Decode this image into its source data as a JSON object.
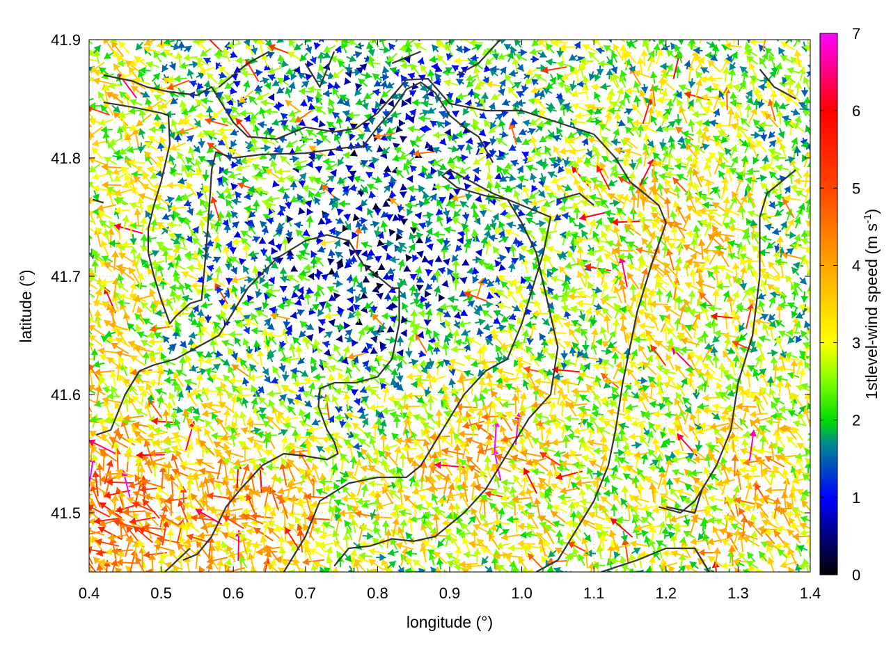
{
  "chart_data": {
    "type": "vector-field",
    "xlabel": "longitude (°)",
    "ylabel": "latitude (°)",
    "xlim": [
      0.4,
      1.4
    ],
    "ylim": [
      41.45,
      41.9
    ],
    "xticks": [
      0.4,
      0.5,
      0.6,
      0.7,
      0.8,
      0.9,
      1.0,
      1.1,
      1.2,
      1.3,
      1.4
    ],
    "xtick_labels": [
      "0.4",
      "0.5",
      "0.6",
      "0.7",
      "0.8",
      "0.9",
      "1.0",
      "1.1",
      "1.2",
      "1.3",
      "1.4"
    ],
    "yticks": [
      41.5,
      41.6,
      41.7,
      41.8,
      41.9
    ],
    "ytick_labels": [
      "41.5",
      "41.6",
      "41.7",
      "41.8",
      "41.9"
    ],
    "grid": true,
    "colorbar": {
      "label_text": "1stlevel-wind speed (m s",
      "label_sup": "-1",
      "label_tail": ")",
      "range": [
        0,
        7
      ],
      "ticks": [
        0,
        1,
        2,
        3,
        4,
        5,
        6,
        7
      ],
      "tick_labels": [
        "0",
        "1",
        "2",
        "3",
        "4",
        "5",
        "6",
        "7"
      ],
      "stops": [
        {
          "v": 0,
          "color": "#000000"
        },
        {
          "v": 1,
          "color": "#0000ff"
        },
        {
          "v": 1.7,
          "color": "#008b8b"
        },
        {
          "v": 2,
          "color": "#00dd00"
        },
        {
          "v": 2.5,
          "color": "#7fff00"
        },
        {
          "v": 3,
          "color": "#ffff00"
        },
        {
          "v": 4,
          "color": "#ffa500"
        },
        {
          "v": 5,
          "color": "#ff4500"
        },
        {
          "v": 6,
          "color": "#ff0000"
        },
        {
          "v": 7,
          "color": "#ff00ff"
        }
      ]
    },
    "contour_color": "#333333",
    "contours": [
      [
        [
          0.42,
          41.87
        ],
        [
          0.46,
          41.865
        ],
        [
          0.48,
          41.86
        ],
        [
          0.51,
          41.856
        ],
        [
          0.55,
          41.853
        ],
        [
          0.57,
          41.86
        ],
        [
          0.6,
          41.83
        ],
        [
          0.62,
          41.818
        ],
        [
          0.66,
          41.816
        ],
        [
          0.7,
          41.826
        ],
        [
          0.74,
          41.822
        ],
        [
          0.77,
          41.825
        ],
        [
          0.8,
          41.838
        ],
        [
          0.82,
          41.852
        ],
        [
          0.84,
          41.866
        ],
        [
          0.87,
          41.867
        ],
        [
          0.9,
          41.846
        ],
        [
          0.95,
          41.84
        ],
        [
          1.0,
          41.84
        ],
        [
          1.05,
          41.83
        ],
        [
          1.1,
          41.82
        ],
        [
          1.13,
          41.8
        ],
        [
          1.15,
          41.78
        ],
        [
          1.17,
          41.77
        ],
        [
          1.19,
          41.76
        ],
        [
          1.2,
          41.745
        ],
        [
          1.18,
          41.71
        ],
        [
          1.17,
          41.69
        ],
        [
          1.16,
          41.67
        ],
        [
          1.15,
          41.64
        ],
        [
          1.14,
          41.61
        ],
        [
          1.13,
          41.57
        ],
        [
          1.12,
          41.54
        ],
        [
          1.1,
          41.51
        ],
        [
          1.08,
          41.49
        ],
        [
          1.05,
          41.46
        ],
        [
          1.02,
          41.45
        ]
      ],
      [
        [
          0.42,
          41.847
        ],
        [
          0.46,
          41.843
        ],
        [
          0.5,
          41.838
        ],
        [
          0.51,
          41.836
        ],
        [
          0.512,
          41.812
        ],
        [
          0.5,
          41.78
        ],
        [
          0.49,
          41.76
        ],
        [
          0.482,
          41.74
        ],
        [
          0.482,
          41.72
        ],
        [
          0.49,
          41.7
        ],
        [
          0.5,
          41.68
        ],
        [
          0.512,
          41.66
        ],
        [
          0.52,
          41.666
        ],
        [
          0.54,
          41.677
        ],
        [
          0.556,
          41.68
        ],
        [
          0.562,
          41.72
        ],
        [
          0.568,
          41.77
        ],
        [
          0.57,
          41.79
        ],
        [
          0.576,
          41.805
        ],
        [
          0.6,
          41.8
        ],
        [
          0.64,
          41.803
        ],
        [
          0.7,
          41.804
        ],
        [
          0.76,
          41.809
        ],
        [
          0.78,
          41.81
        ],
        [
          0.8,
          41.826
        ],
        [
          0.82,
          41.84
        ],
        [
          0.84,
          41.858
        ],
        [
          0.86,
          41.864
        ],
        [
          0.88,
          41.855
        ],
        [
          0.9,
          41.836
        ],
        [
          0.92,
          41.826
        ],
        [
          0.94,
          41.818
        ],
        [
          0.96,
          41.796
        ]
      ],
      [
        [
          0.41,
          41.566
        ],
        [
          0.43,
          41.57
        ],
        [
          0.45,
          41.6
        ],
        [
          0.47,
          41.62
        ],
        [
          0.49,
          41.625
        ],
        [
          0.52,
          41.63
        ],
        [
          0.55,
          41.64
        ],
        [
          0.58,
          41.65
        ],
        [
          0.6,
          41.67
        ],
        [
          0.62,
          41.69
        ],
        [
          0.66,
          41.715
        ],
        [
          0.7,
          41.73
        ],
        [
          0.73,
          41.735
        ],
        [
          0.76,
          41.73
        ],
        [
          0.78,
          41.71
        ],
        [
          0.8,
          41.7
        ],
        [
          0.82,
          41.69
        ],
        [
          0.83,
          41.69
        ],
        [
          0.83,
          41.66
        ],
        [
          0.82,
          41.63
        ],
        [
          0.8,
          41.615
        ],
        [
          0.77,
          41.61
        ],
        [
          0.74,
          41.61
        ],
        [
          0.72,
          41.605
        ],
        [
          0.718,
          41.59
        ],
        [
          0.73,
          41.57
        ],
        [
          0.74,
          41.56
        ],
        [
          0.745,
          41.55
        ],
        [
          0.73,
          41.545
        ],
        [
          0.7,
          41.548
        ],
        [
          0.67,
          41.55
        ],
        [
          0.64,
          41.54
        ],
        [
          0.61,
          41.52
        ],
        [
          0.59,
          41.505
        ],
        [
          0.57,
          41.48
        ],
        [
          0.55,
          41.465
        ],
        [
          0.53,
          41.46
        ]
      ],
      [
        [
          0.405,
          41.765
        ],
        [
          0.42,
          41.762
        ]
      ],
      [
        [
          0.505,
          41.45
        ],
        [
          0.54,
          41.47
        ]
      ],
      [
        [
          0.66,
          41.44
        ],
        [
          0.7,
          41.48
        ],
        [
          0.72,
          41.51
        ],
        [
          0.76,
          41.525
        ],
        [
          0.8,
          41.53
        ],
        [
          0.84,
          41.53
        ],
        [
          0.86,
          41.54
        ],
        [
          0.88,
          41.56
        ],
        [
          0.9,
          41.58
        ],
        [
          0.92,
          41.6
        ],
        [
          0.95,
          41.62
        ],
        [
          0.98,
          41.63
        ],
        [
          1.0,
          41.66
        ],
        [
          1.02,
          41.7
        ],
        [
          1.03,
          41.72
        ],
        [
          1.04,
          41.75
        ],
        [
          1.0,
          41.76
        ],
        [
          0.96,
          41.77
        ],
        [
          0.93,
          41.78
        ],
        [
          0.9,
          41.79
        ],
        [
          0.89,
          41.785
        ],
        [
          0.91,
          41.775
        ],
        [
          0.95,
          41.768
        ],
        [
          0.98,
          41.765
        ],
        [
          1.0,
          41.745
        ],
        [
          1.02,
          41.72
        ],
        [
          1.035,
          41.68
        ],
        [
          1.05,
          41.64
        ],
        [
          1.04,
          41.6
        ],
        [
          1.01,
          41.58
        ],
        [
          0.98,
          41.55
        ],
        [
          0.95,
          41.52
        ],
        [
          0.92,
          41.5
        ],
        [
          0.9,
          41.49
        ],
        [
          0.88,
          41.48
        ],
        [
          0.85,
          41.476
        ],
        [
          0.82,
          41.478
        ],
        [
          0.79,
          41.472
        ],
        [
          0.76,
          41.47
        ],
        [
          0.74,
          41.455
        ]
      ],
      [
        [
          1.11,
          41.45
        ],
        [
          1.16,
          41.46
        ],
        [
          1.2,
          41.47
        ],
        [
          1.24,
          41.47
        ],
        [
          1.26,
          41.45
        ]
      ],
      [
        [
          1.19,
          41.505
        ],
        [
          1.22,
          41.5
        ],
        [
          1.24,
          41.51
        ],
        [
          1.25,
          41.52
        ],
        [
          1.24,
          41.5
        ],
        [
          1.2,
          41.505
        ]
      ],
      [
        [
          1.25,
          41.52
        ],
        [
          1.27,
          41.54
        ],
        [
          1.29,
          41.57
        ],
        [
          1.3,
          41.61
        ],
        [
          1.31,
          41.63
        ],
        [
          1.32,
          41.65
        ],
        [
          1.33,
          41.7
        ],
        [
          1.33,
          41.75
        ],
        [
          1.34,
          41.77
        ],
        [
          1.36,
          41.78
        ],
        [
          1.38,
          41.79
        ]
      ],
      [
        [
          1.05,
          41.765
        ],
        [
          1.08,
          41.77
        ],
        [
          1.1,
          41.76
        ]
      ],
      [
        [
          1.33,
          41.875
        ],
        [
          1.35,
          41.86
        ],
        [
          1.38,
          41.85
        ]
      ],
      [
        [
          0.58,
          41.86
        ],
        [
          0.62,
          41.88
        ],
        [
          0.65,
          41.89
        ]
      ],
      [
        [
          0.7,
          41.88
        ],
        [
          0.72,
          41.86
        ],
        [
          0.74,
          41.89
        ]
      ],
      [
        [
          0.82,
          41.88
        ],
        [
          0.86,
          41.89
        ]
      ],
      [
        [
          0.91,
          41.87
        ],
        [
          0.94,
          41.88
        ],
        [
          0.97,
          41.9
        ]
      ]
    ]
  }
}
